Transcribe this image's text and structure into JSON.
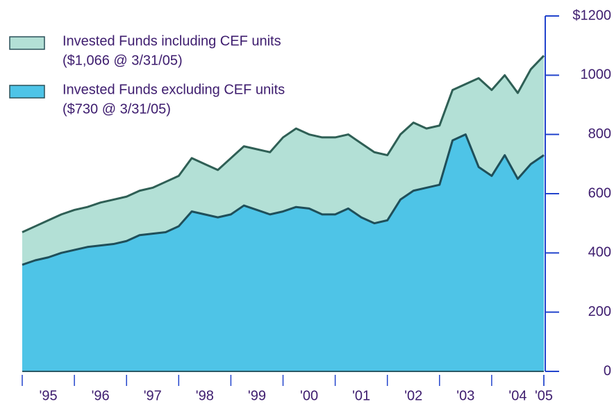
{
  "chart_data": {
    "type": "area",
    "categories": [
      "'95",
      null,
      null,
      null,
      "'96",
      null,
      null,
      null,
      "'97",
      null,
      null,
      null,
      "'98",
      null,
      null,
      null,
      "'99",
      null,
      null,
      null,
      "'00",
      null,
      null,
      null,
      "'01",
      null,
      null,
      null,
      "'02",
      null,
      null,
      null,
      "'03",
      null,
      null,
      null,
      "'04",
      null,
      null,
      null,
      "'05"
    ],
    "series": [
      {
        "name": "Invested Funds including CEF units",
        "annotation": "($1,066 @ 3/31/05)",
        "color": "#b3e0d6",
        "edge": "#2f5f55",
        "values": [
          470,
          490,
          510,
          530,
          545,
          555,
          570,
          580,
          590,
          610,
          620,
          640,
          660,
          720,
          700,
          680,
          720,
          760,
          750,
          740,
          790,
          820,
          800,
          790,
          790,
          800,
          770,
          740,
          730,
          800,
          840,
          820,
          830,
          950,
          970,
          990,
          950,
          1000,
          940,
          1020,
          1066
        ]
      },
      {
        "name": "Invested Funds excluding CEF units",
        "annotation": "($730 @ 3/31/05)",
        "color": "#4ec4e7",
        "edge": "#1f4f5a",
        "values": [
          360,
          375,
          385,
          400,
          410,
          420,
          425,
          430,
          440,
          460,
          465,
          470,
          490,
          540,
          530,
          520,
          530,
          560,
          545,
          530,
          540,
          555,
          550,
          530,
          530,
          550,
          520,
          500,
          510,
          580,
          610,
          620,
          630,
          780,
          800,
          690,
          660,
          730,
          650,
          700,
          730
        ]
      }
    ],
    "ylim": [
      0,
      1200
    ],
    "yticks": [
      0,
      200,
      400,
      600,
      800,
      1000,
      {
        "value": 1200,
        "label": "$1200"
      }
    ]
  }
}
